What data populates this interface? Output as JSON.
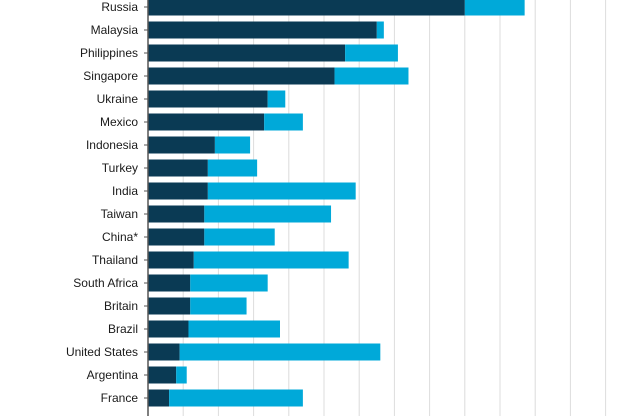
{
  "chart_data": {
    "type": "bar",
    "orientation": "horizontal",
    "stacked": true,
    "categories": [
      "Russia",
      "Malaysia",
      "Philippines",
      "Singapore",
      "Ukraine",
      "Mexico",
      "Indonesia",
      "Turkey",
      "India",
      "Taiwan",
      "China*",
      "Thailand",
      "South Africa",
      "Britain",
      "Brazil",
      "United States",
      "Argentina",
      "France"
    ],
    "series": [
      {
        "color": "#0a3a54",
        "values": [
          9.0,
          6.5,
          5.6,
          5.3,
          3.4,
          3.3,
          1.9,
          1.7,
          1.7,
          1.6,
          1.6,
          1.3,
          1.2,
          1.2,
          1.15,
          0.9,
          0.8,
          0.6
        ]
      },
      {
        "color": "#00a9d9",
        "values": [
          1.7,
          0.2,
          1.5,
          2.1,
          0.5,
          1.1,
          1.0,
          1.4,
          4.2,
          3.6,
          2.0,
          4.4,
          2.2,
          1.6,
          2.6,
          5.7,
          0.3,
          3.8
        ]
      }
    ],
    "xlim": [
      0,
      13.5
    ],
    "grid": true,
    "gridline_step": 1,
    "tick_labels_visible": false
  }
}
